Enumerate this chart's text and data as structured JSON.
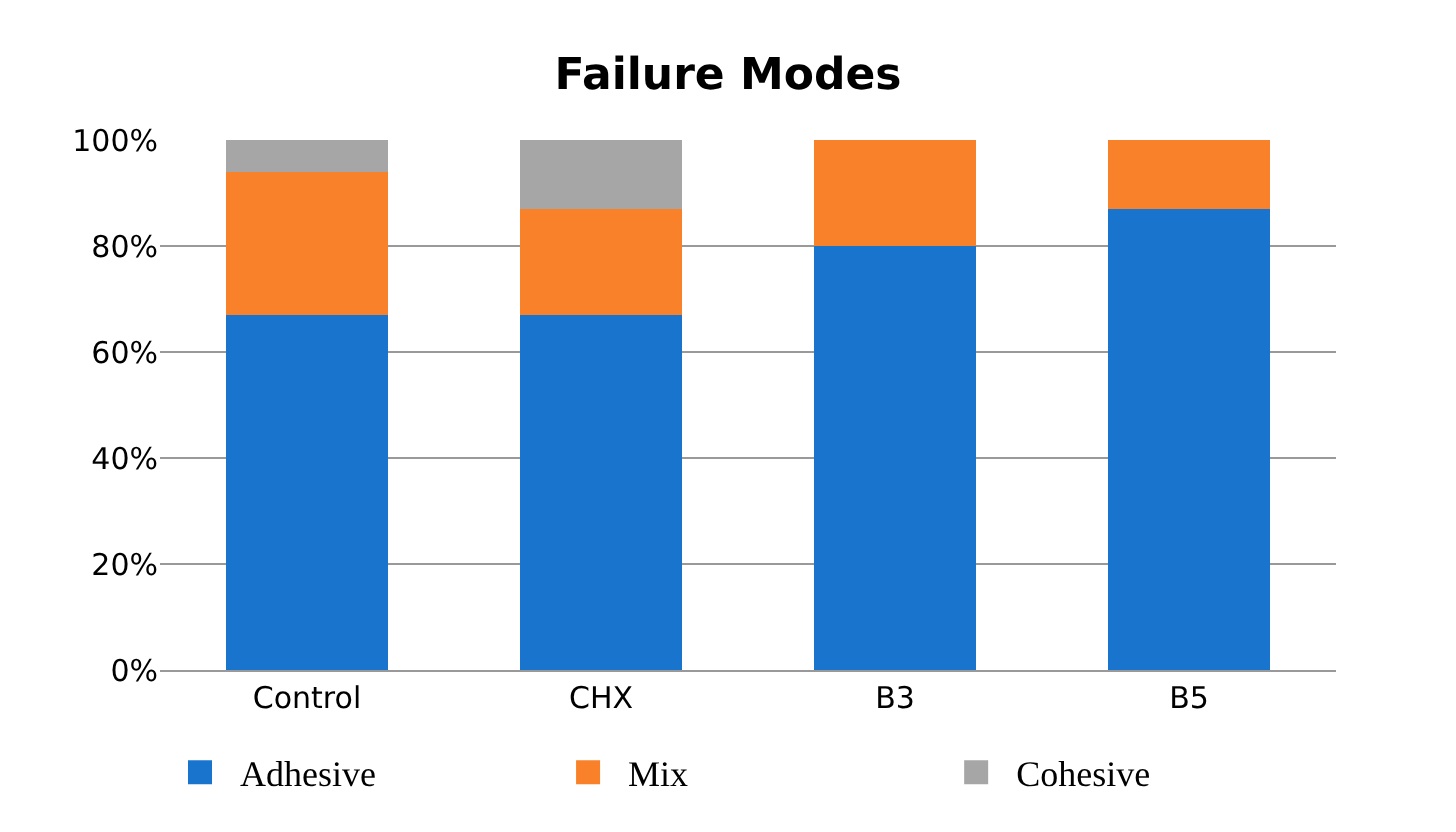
{
  "chart_data": {
    "type": "bar",
    "title": "Failure Modes",
    "categories": [
      "Control",
      "CHX",
      "B3",
      "B5"
    ],
    "series": [
      {
        "name": "Adhesive",
        "color": "#1874cd",
        "values": [
          67,
          67,
          80,
          87
        ]
      },
      {
        "name": "Mix",
        "color": "#f9812a",
        "values": [
          27,
          20,
          20,
          13
        ]
      },
      {
        "name": "Cohesive",
        "color": "#a6a6a6",
        "values": [
          6,
          13,
          0,
          0
        ]
      }
    ],
    "stacked": true,
    "ylim": [
      0,
      100
    ],
    "yticks": [
      {
        "value": 0,
        "label": "0%"
      },
      {
        "value": 20,
        "label": "20%"
      },
      {
        "value": 40,
        "label": "40%"
      },
      {
        "value": 60,
        "label": "60%"
      },
      {
        "value": 80,
        "label": "80%"
      },
      {
        "value": 100,
        "label": "100%"
      }
    ],
    "grid": "y",
    "legend": "bottom"
  }
}
